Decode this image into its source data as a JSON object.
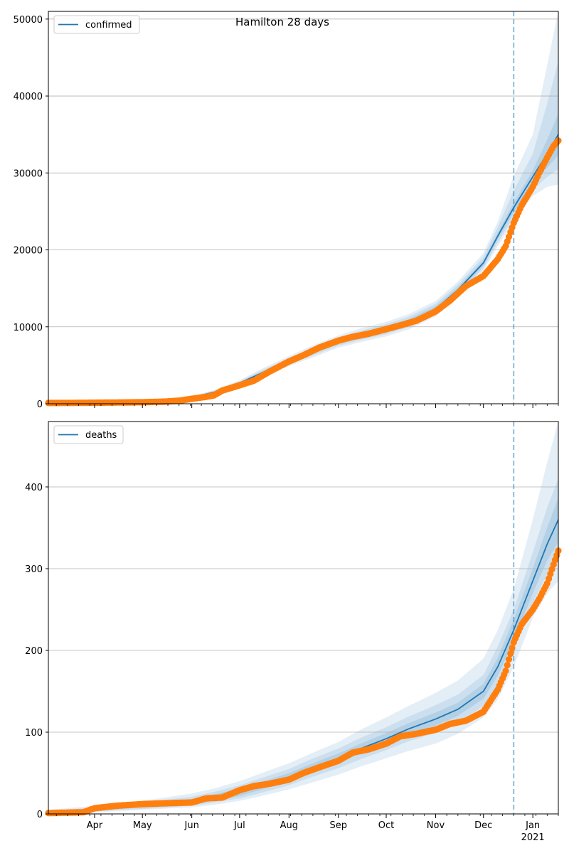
{
  "figure": {
    "title": "Hamilton 28 days"
  },
  "colors": {
    "model": "#1f77b4",
    "observed": "#ff7f0e",
    "band": "#1f77b4",
    "grid": "#b0b0b0",
    "cutoff": "#1f77b4"
  },
  "chart_data": [
    {
      "type": "line",
      "title": "Hamilton 28 days",
      "legend": "confirmed",
      "legend_position": "top-left",
      "grid": "horizontal",
      "x_axis": {
        "type": "date",
        "min": "2020-03-03",
        "max": "2021-01-17"
      },
      "ylim": [
        0,
        51000
      ],
      "yticks": [
        0,
        10000,
        20000,
        30000,
        40000,
        50000
      ],
      "ytick_labels": [
        "0",
        "10000",
        "20000",
        "30000",
        "40000",
        "50000"
      ],
      "forecast_start": "2020-12-20",
      "model_series": {
        "name": "confirmed",
        "x": [
          "2020-03-03",
          "2020-04-01",
          "2020-05-01",
          "2020-05-20",
          "2020-06-01",
          "2020-06-15",
          "2020-07-01",
          "2020-07-15",
          "2020-08-01",
          "2020-08-15",
          "2020-09-01",
          "2020-09-15",
          "2020-10-01",
          "2020-10-15",
          "2020-11-01",
          "2020-11-15",
          "2020-12-01",
          "2020-12-10",
          "2020-12-20",
          "2021-01-01",
          "2021-01-10",
          "2021-01-17"
        ],
        "y": [
          100,
          150,
          200,
          400,
          800,
          1500,
          2700,
          4000,
          5500,
          6700,
          8100,
          8900,
          9700,
          10600,
          12300,
          14800,
          18300,
          21800,
          25500,
          29500,
          32500,
          35000
        ],
        "bands": [
          {
            "lower": [
              60,
              100,
              140,
              280,
              620,
              1250,
              2400,
              3550,
              4900,
              5950,
              7300,
              8000,
              8750,
              9650,
              11350,
              13900,
              17300,
              20500,
              23700,
              27000,
              28200,
              28500
            ],
            "upper": [
              150,
              210,
              270,
              540,
              1000,
              1800,
              3050,
              4550,
              6200,
              7500,
              8900,
              9800,
              10650,
              11650,
              13350,
              15900,
              19600,
              23700,
              29600,
              35000,
              44000,
              51000
            ]
          },
          {
            "lower": [
              70,
              115,
              160,
              320,
              680,
              1330,
              2500,
              3700,
              5100,
              6200,
              7550,
              8300,
              9050,
              9950,
              11650,
              14200,
              17650,
              20950,
              24250,
              27800,
              29500,
              30500
            ],
            "upper": [
              135,
              190,
              245,
              490,
              930,
              1700,
              2920,
              4350,
              5950,
              7200,
              8600,
              9500,
              10350,
              11300,
              13000,
              15500,
              19100,
              23000,
              27700,
              32500,
              39000,
              44500
            ]
          },
          {
            "lower": [
              80,
              128,
              175,
              355,
              730,
              1400,
              2580,
              3820,
              5270,
              6420,
              7780,
              8560,
              9310,
              10220,
              11920,
              14460,
              17960,
              21360,
              24870,
              28650,
              30700,
              32300
            ],
            "upper": [
              120,
              172,
              225,
              445,
              870,
              1600,
              2820,
              4180,
              5730,
              6980,
              8420,
              9240,
              10090,
              10980,
              12680,
              15140,
              18640,
              22240,
              26130,
              30350,
              34300,
              37700
            ]
          }
        ]
      },
      "observed_series": {
        "name": "observed",
        "x": [
          "2020-03-03",
          "2020-03-15",
          "2020-04-01",
          "2020-04-15",
          "2020-05-01",
          "2020-05-15",
          "2020-05-25",
          "2020-06-01",
          "2020-06-10",
          "2020-06-15",
          "2020-06-20",
          "2020-07-01",
          "2020-07-10",
          "2020-07-20",
          "2020-08-01",
          "2020-08-10",
          "2020-08-20",
          "2020-09-01",
          "2020-09-10",
          "2020-09-20",
          "2020-10-01",
          "2020-10-10",
          "2020-10-20",
          "2020-11-01",
          "2020-11-10",
          "2020-11-20",
          "2020-12-01",
          "2020-12-10",
          "2020-12-15",
          "2020-12-20",
          "2020-12-25",
          "2021-01-01",
          "2021-01-05",
          "2021-01-10",
          "2021-01-14",
          "2021-01-17"
        ],
        "y": [
          100,
          110,
          130,
          160,
          200,
          280,
          420,
          650,
          900,
          1100,
          1700,
          2400,
          3000,
          4200,
          5500,
          6300,
          7300,
          8200,
          8700,
          9100,
          9700,
          10200,
          10800,
          12000,
          13400,
          15300,
          16600,
          18800,
          20500,
          23500,
          25800,
          28200,
          30000,
          32000,
          33500,
          34200
        ]
      }
    },
    {
      "type": "line",
      "title": "",
      "legend": "deaths",
      "legend_position": "top-left",
      "grid": "horizontal",
      "x_axis": {
        "type": "date",
        "min": "2020-03-03",
        "max": "2021-01-17"
      },
      "ylim": [
        0,
        480
      ],
      "yticks": [
        0,
        100,
        200,
        300,
        400
      ],
      "ytick_labels": [
        "0",
        "100",
        "200",
        "300",
        "400"
      ],
      "xtick_labels": [
        "Apr",
        "May",
        "Jun",
        "Jul",
        "Aug",
        "Sep",
        "Oct",
        "Nov",
        "Dec",
        "Jan\n2021"
      ],
      "forecast_start": "2020-12-20",
      "model_series": {
        "name": "deaths",
        "x": [
          "2020-03-03",
          "2020-04-01",
          "2020-05-01",
          "2020-06-01",
          "2020-06-15",
          "2020-07-01",
          "2020-07-15",
          "2020-08-01",
          "2020-08-15",
          "2020-09-01",
          "2020-09-15",
          "2020-10-01",
          "2020-10-15",
          "2020-11-01",
          "2020-11-15",
          "2020-12-01",
          "2020-12-10",
          "2020-12-20",
          "2021-01-01",
          "2021-01-10",
          "2021-01-17"
        ],
        "y": [
          1,
          5,
          10,
          15,
          20,
          27,
          35,
          45,
          56,
          68,
          80,
          92,
          104,
          116,
          128,
          150,
          180,
          225,
          285,
          330,
          360
        ],
        "bands": [
          {
            "lower": [
              0,
              2,
              5,
              8,
              11,
              16,
              22,
              30,
              38,
              48,
              58,
              68,
              77,
              86,
              98,
              118,
              140,
              180,
              240,
              270,
              285
            ],
            "upper": [
              5,
              10,
              16,
              25,
              31,
              40,
              50,
              62,
              74,
              88,
              103,
              118,
              132,
              148,
              163,
              190,
              225,
              275,
              360,
              430,
              480
            ]
          },
          {
            "lower": [
              0,
              3,
              6,
              10,
              14,
              19,
              26,
              35,
              45,
              56,
              67,
              78,
              89,
              99,
              111,
              132,
              158,
              200,
              258,
              293,
              310
            ],
            "upper": [
              4,
              8,
              14,
              21,
              27,
              35,
              44,
              55,
              67,
              80,
              93,
              106,
              119,
              133,
              146,
              170,
              205,
              250,
              320,
              375,
              410
            ]
          },
          {
            "lower": [
              0,
              4,
              8,
              12,
              16,
              22,
              30,
              40,
              50,
              62,
              74,
              85,
              97,
              108,
              120,
              141,
              169,
              212,
              270,
              310,
              333
            ],
            "upper": [
              3,
              7,
              12,
              18,
              24,
              31,
              39,
              50,
              61,
              74,
              86,
              99,
              111,
              124,
              136,
              159,
              191,
              238,
              300,
              350,
              387
            ]
          }
        ]
      },
      "observed_series": {
        "name": "observed",
        "x": [
          "2020-03-03",
          "2020-03-25",
          "2020-04-01",
          "2020-04-15",
          "2020-05-01",
          "2020-05-15",
          "2020-06-01",
          "2020-06-10",
          "2020-06-20",
          "2020-07-01",
          "2020-07-10",
          "2020-07-20",
          "2020-08-01",
          "2020-08-10",
          "2020-08-20",
          "2020-09-01",
          "2020-09-10",
          "2020-09-20",
          "2020-10-01",
          "2020-10-10",
          "2020-10-20",
          "2020-11-01",
          "2020-11-10",
          "2020-11-20",
          "2020-12-01",
          "2020-12-10",
          "2020-12-15",
          "2020-12-20",
          "2020-12-25",
          "2021-01-01",
          "2021-01-05",
          "2021-01-10",
          "2021-01-14",
          "2021-01-17"
        ],
        "y": [
          1,
          2,
          7,
          10,
          12,
          13,
          14,
          19,
          20,
          29,
          34,
          37,
          42,
          50,
          57,
          65,
          75,
          79,
          86,
          95,
          98,
          103,
          110,
          114,
          125,
          152,
          175,
          210,
          232,
          250,
          263,
          282,
          305,
          322
        ]
      }
    }
  ]
}
